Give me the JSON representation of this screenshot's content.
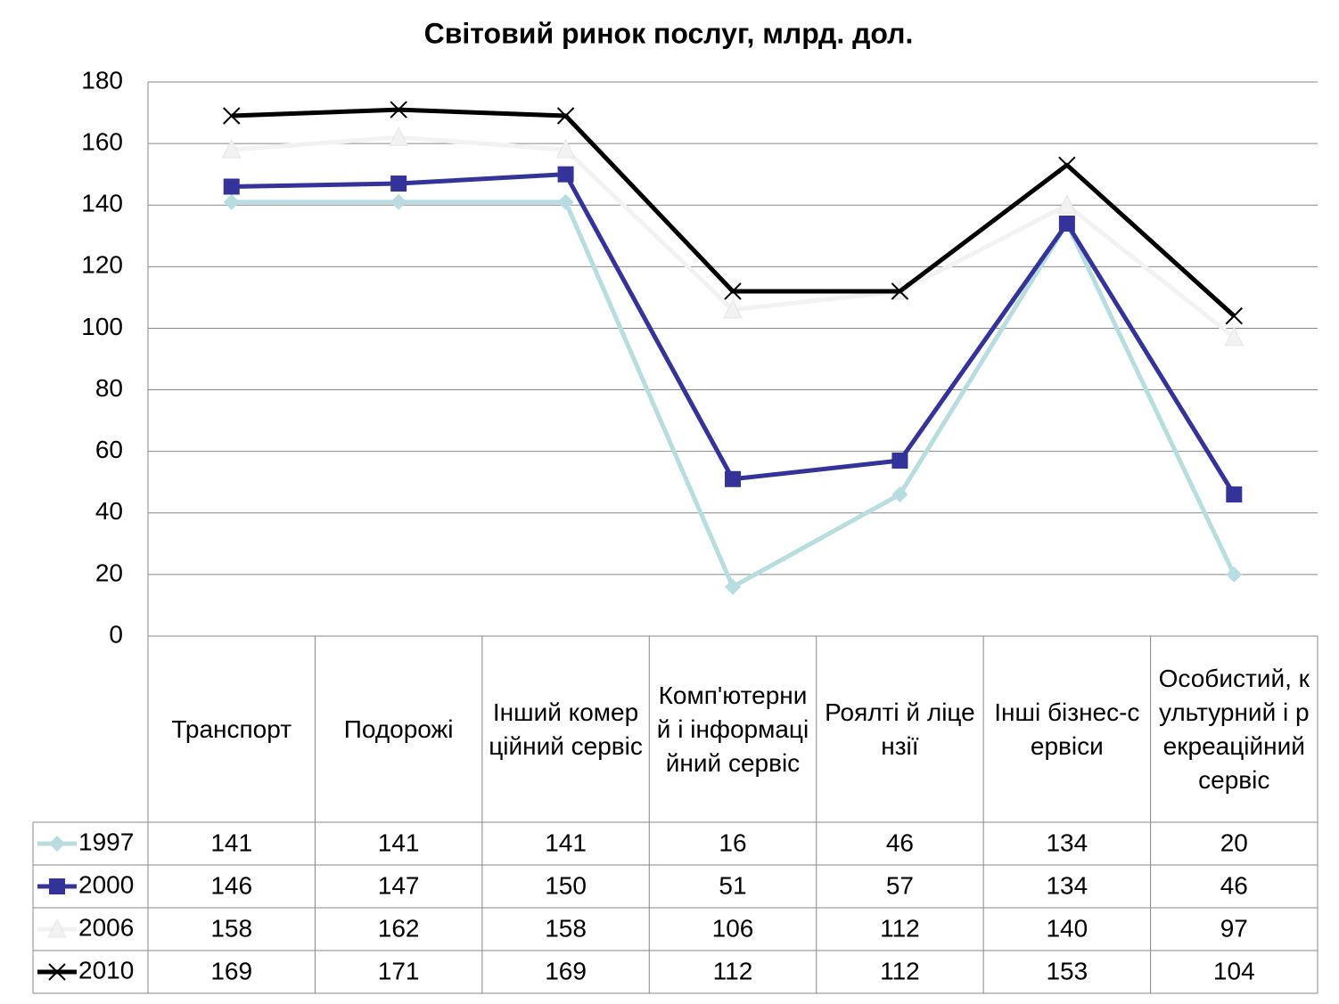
{
  "chart_data": {
    "type": "line",
    "title": "Світовий ринок послуг, млрд. дол.",
    "categories": [
      "Транспорт",
      "Подорожі",
      "Інший комерційний сервіс",
      "Комп'ютерний і інформаційний сервіс",
      "Роялті й ліцензії",
      "Інші бізнес-сервіси",
      "Особистий, культурний і рекреаційний сервіс"
    ],
    "series": [
      {
        "name": "1997",
        "color": "#b7dde0",
        "marker": "diamond",
        "values": [
          141,
          141,
          141,
          16,
          46,
          134,
          20
        ]
      },
      {
        "name": "2000",
        "color": "#333399",
        "marker": "square",
        "values": [
          146,
          147,
          150,
          51,
          57,
          134,
          46
        ]
      },
      {
        "name": "2006",
        "color": "#f2f2f2",
        "marker": "triangle",
        "values": [
          158,
          162,
          158,
          106,
          112,
          140,
          97
        ]
      },
      {
        "name": "2010",
        "color": "#000000",
        "marker": "x",
        "values": [
          169,
          171,
          169,
          112,
          112,
          153,
          104
        ]
      }
    ],
    "ylim": [
      0,
      180
    ],
    "yticks": [
      0,
      20,
      40,
      60,
      80,
      100,
      120,
      140,
      160,
      180
    ],
    "grid": true
  }
}
